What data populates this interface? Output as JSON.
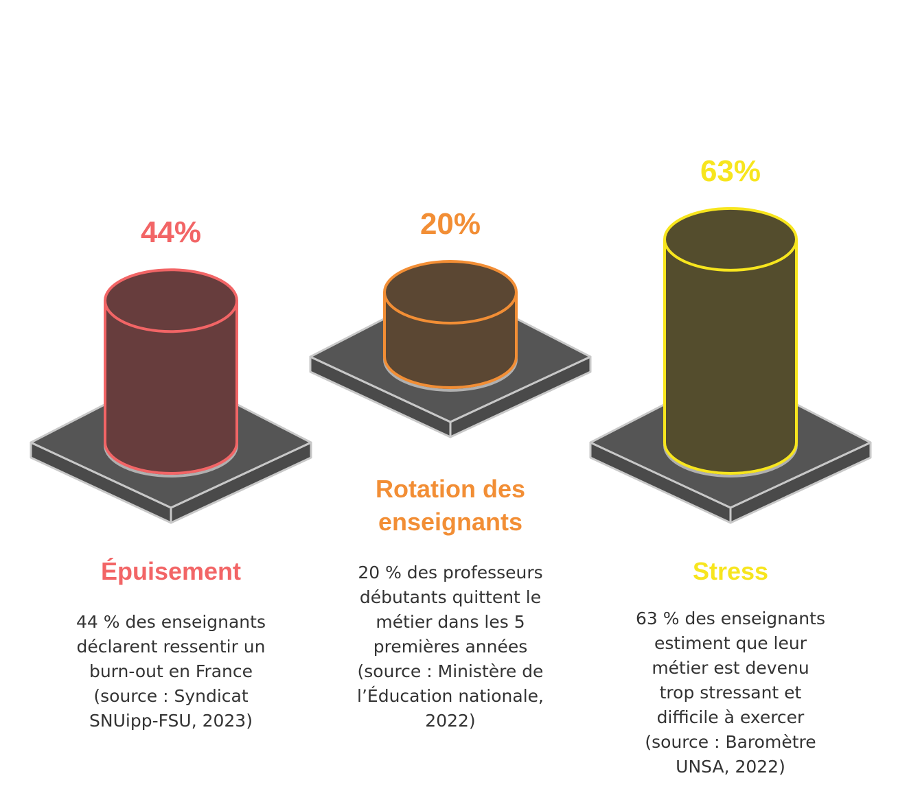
{
  "chart_data": {
    "type": "bar",
    "title": "",
    "categories": [
      "Épuisement",
      "Rotation des enseignants",
      "Stress"
    ],
    "values": [
      44,
      20,
      63
    ],
    "unit": "%",
    "items": [
      {
        "value_label": "44%",
        "title_lines": [
          "Épuisement"
        ],
        "description_lines": [
          "44 % des enseignants",
          "déclarent ressentir un",
          "burn-out en France",
          "(source : Syndicat",
          "SNUipp-FSU, 2023)"
        ],
        "color": "#f26566",
        "fill": "#673d3d"
      },
      {
        "value_label": "20%",
        "title_lines": [
          "Rotation des",
          "enseignants"
        ],
        "description_lines": [
          "20 % des professeurs",
          "débutants quittent le",
          "métier dans les 5",
          "premières années",
          "(source : Ministère de",
          "l’Éducation nationale,",
          "2022)"
        ],
        "color": "#f28e35",
        "fill": "#5b4733"
      },
      {
        "value_label": "63%",
        "title_lines": [
          "Stress"
        ],
        "description_lines": [
          "63 % des enseignants",
          "estiment que leur",
          "métier est devenu",
          "trop stressant et",
          "difficile à exercer",
          "(source : Baromètre",
          "UNSA, 2022)"
        ],
        "color": "#f7e51e",
        "fill": "#544d2d"
      }
    ]
  }
}
